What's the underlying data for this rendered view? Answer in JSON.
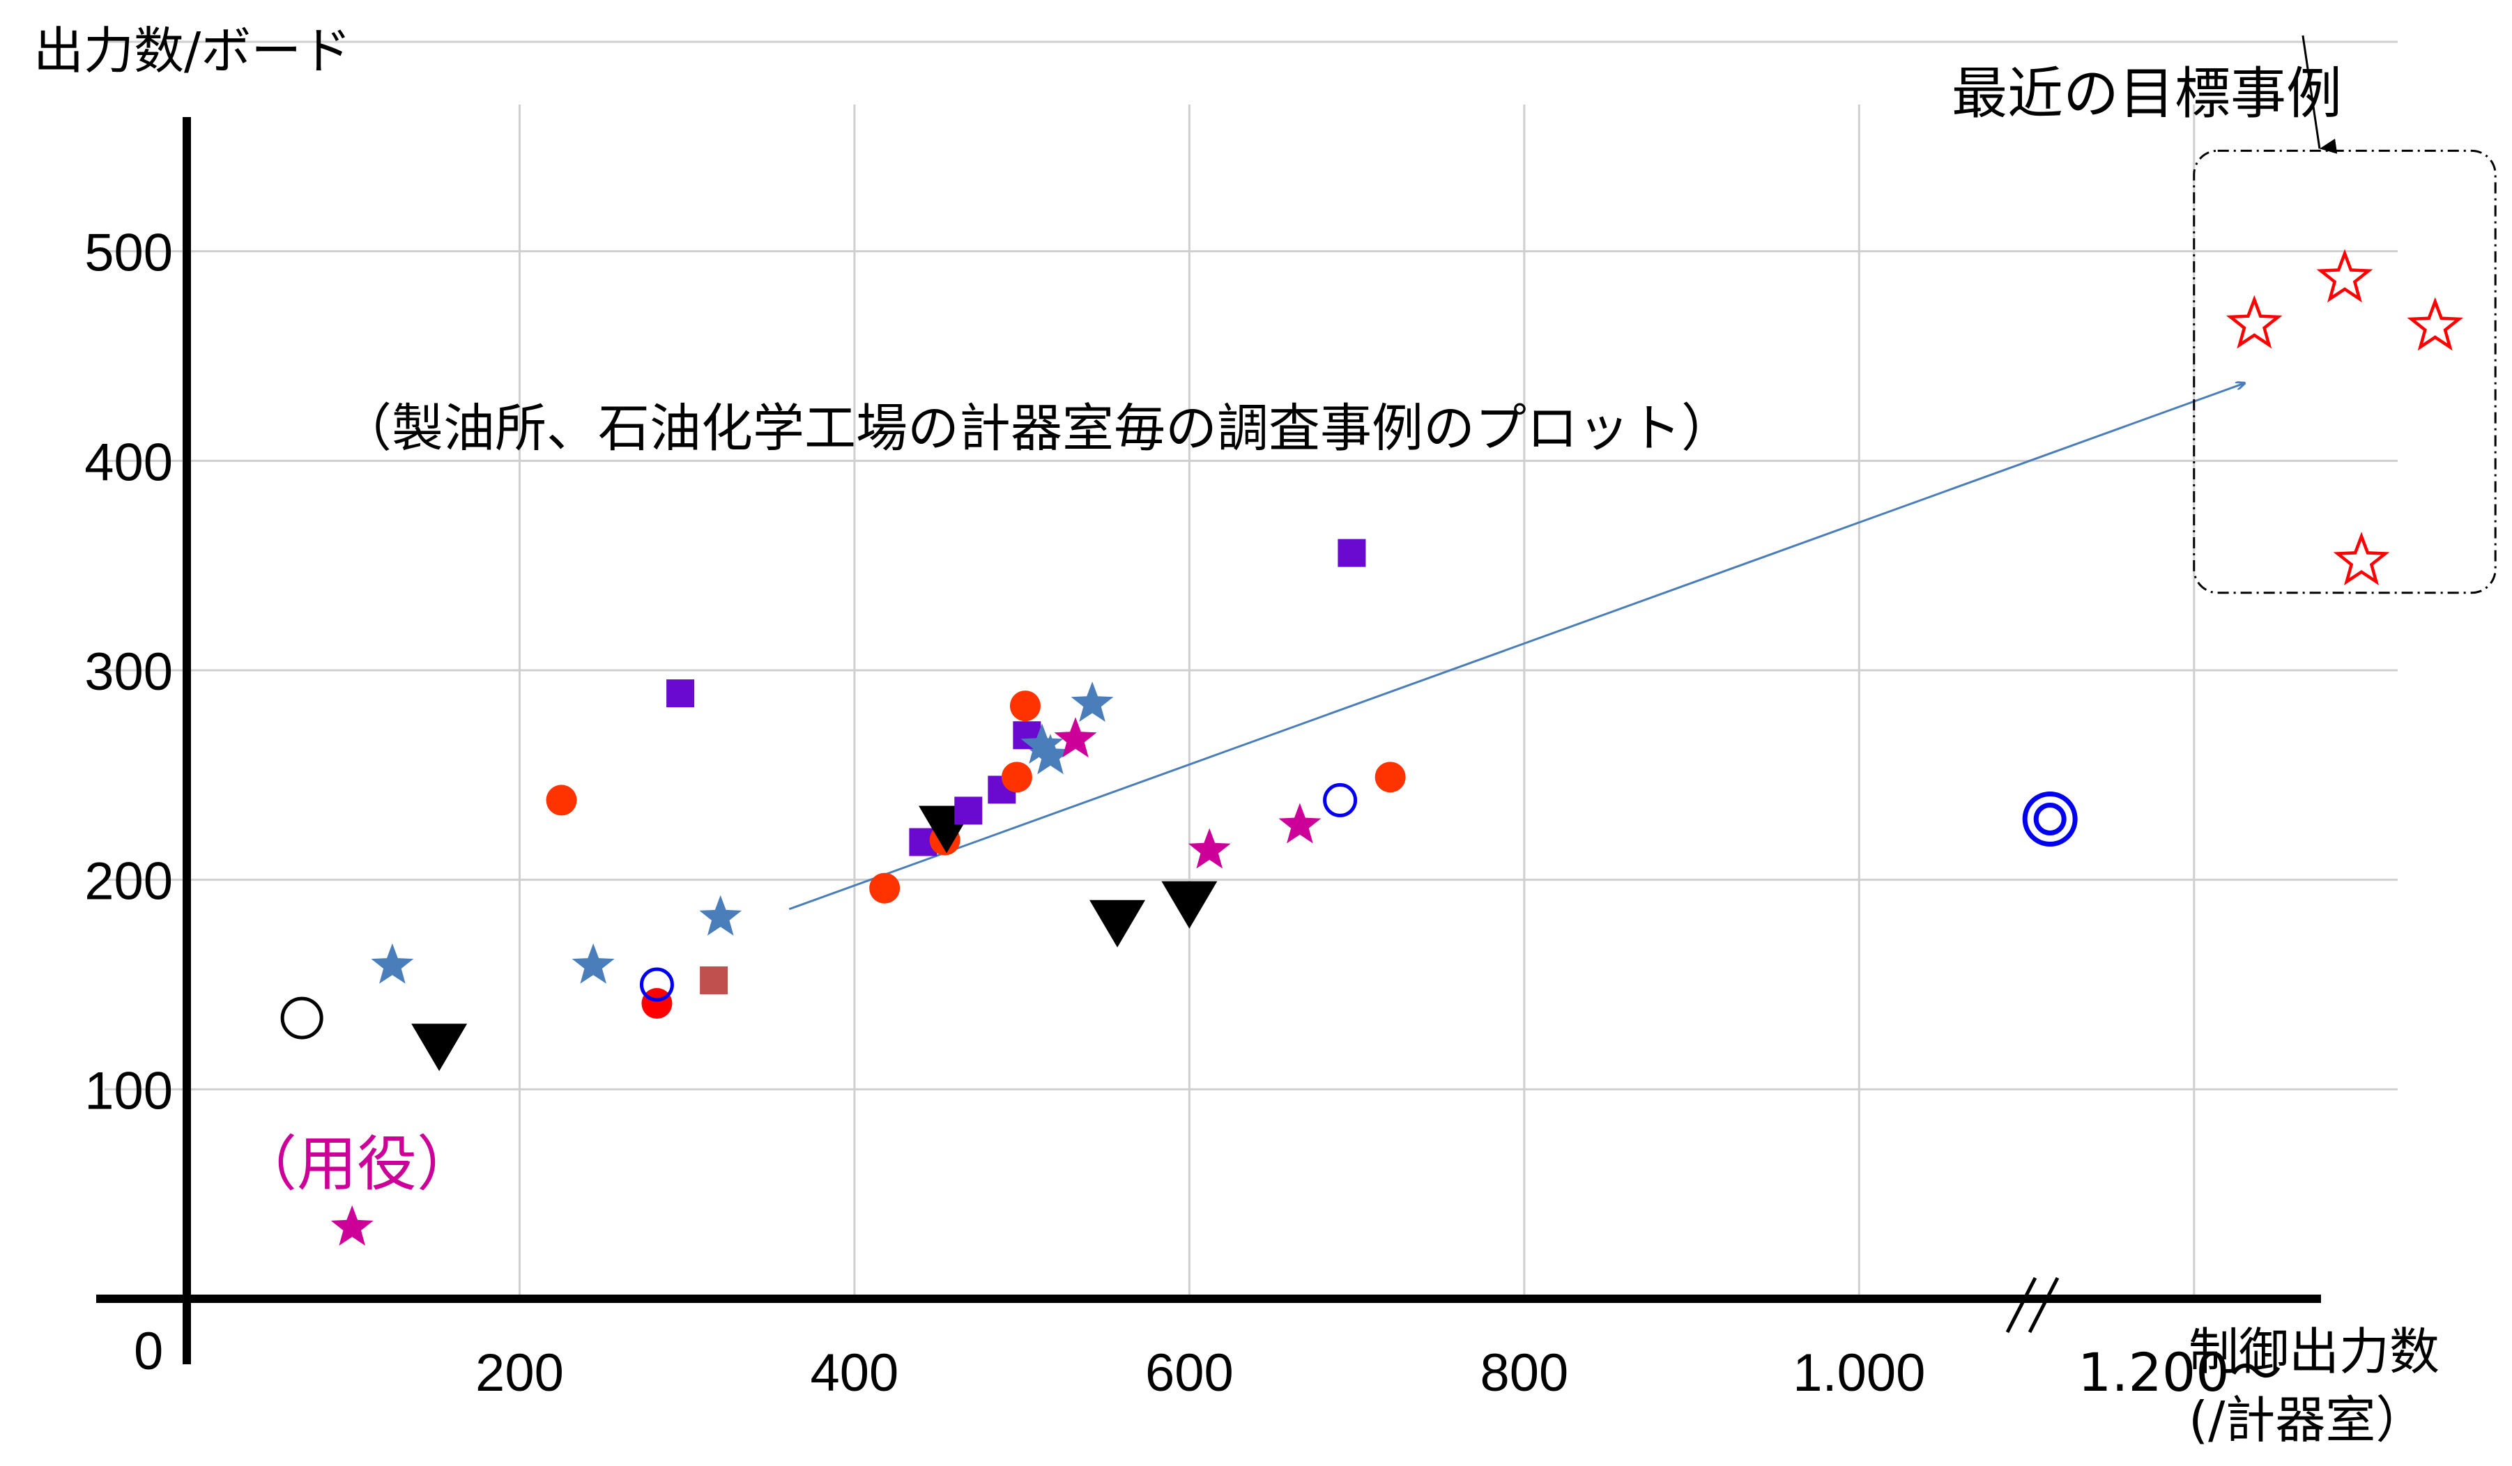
{
  "chart_data": {
    "type": "scatter",
    "title": "",
    "ylabel": "出力数/ボード",
    "xlabel": "制御出力数",
    "xlabel_sub": "(/計器室）",
    "xlim": [
      0,
      1300
    ],
    "ylim": [
      0,
      600
    ],
    "x_ticks": [
      {
        "value": 200,
        "label": "200"
      },
      {
        "value": 400,
        "label": "400"
      },
      {
        "value": 600,
        "label": "600"
      },
      {
        "value": 800,
        "label": "800"
      },
      {
        "value": 1000,
        "label": "1.000"
      },
      {
        "value": 1200,
        "label": "1.200～"
      }
    ],
    "y_ticks": [
      {
        "value": 100,
        "label": "100"
      },
      {
        "value": 200,
        "label": "200"
      },
      {
        "value": 300,
        "label": "300"
      },
      {
        "value": 400,
        "label": "400"
      },
      {
        "value": 500,
        "label": "500"
      }
    ],
    "origin_label": "0",
    "x_axis_break": true,
    "grid": true,
    "annotations": {
      "subtitle": "（製油所、石油化学工場の計器室毎の調査事例のプロット）",
      "utility_label": "（用役）",
      "target_label": "最近の目標事例"
    },
    "trend_arrow": {
      "from": [
        361,
        186
      ],
      "to": [
        1230,
        437
      ]
    },
    "target_box": {
      "x": [
        1200,
        1380
      ],
      "y": [
        337,
        548
      ]
    },
    "label_pointer": {
      "from": [
        1265,
        603
      ],
      "to": [
        1275,
        549
      ]
    },
    "colors": {
      "steel_blue": "#4a7ebb",
      "purple": "#6a0ad0",
      "red_orange": "#ff3300",
      "magenta": "#cc0099",
      "red": "#ff0000",
      "blue": "#0000ee",
      "brown": "#c0504d",
      "black": "#000000",
      "trend": "#4a7ebb"
    },
    "points": [
      {
        "shape": "circle_open",
        "color": "#000000",
        "x": 70,
        "y": 134
      },
      {
        "shape": "star",
        "color": "#4a7ebb",
        "x": 124,
        "y": 159
      },
      {
        "shape": "triangle_down",
        "color": "#000000",
        "x": 152,
        "y": 120
      },
      {
        "shape": "star",
        "color": "#cc0099",
        "x": 100,
        "y": 34
      },
      {
        "shape": "circle",
        "color": "#ff3300",
        "x": 225,
        "y": 238
      },
      {
        "shape": "star",
        "color": "#4a7ebb",
        "x": 244,
        "y": 159
      },
      {
        "shape": "circle",
        "color": "#ff0000",
        "x": 282,
        "y": 141
      },
      {
        "shape": "circle_open",
        "color": "#0000ee",
        "x": 282,
        "y": 150
      },
      {
        "shape": "square",
        "color": "#6a0ad0",
        "x": 296,
        "y": 289
      },
      {
        "shape": "square",
        "color": "#c0504d",
        "x": 316,
        "y": 152
      },
      {
        "shape": "star",
        "color": "#4a7ebb",
        "x": 320,
        "y": 182
      },
      {
        "shape": "circle",
        "color": "#ff3300",
        "x": 418,
        "y": 196
      },
      {
        "shape": "square",
        "color": "#6a0ad0",
        "x": 441,
        "y": 218
      },
      {
        "shape": "circle",
        "color": "#ff3300",
        "x": 454,
        "y": 219
      },
      {
        "shape": "triangle_down",
        "color": "#000000",
        "x": 455,
        "y": 224
      },
      {
        "shape": "square",
        "color": "#6a0ad0",
        "x": 468,
        "y": 233
      },
      {
        "shape": "square",
        "color": "#6a0ad0",
        "x": 488,
        "y": 243
      },
      {
        "shape": "circle",
        "color": "#ff3300",
        "x": 497,
        "y": 249
      },
      {
        "shape": "circle",
        "color": "#ff3300",
        "x": 502,
        "y": 283
      },
      {
        "shape": "square",
        "color": "#6a0ad0",
        "x": 503,
        "y": 269
      },
      {
        "shape": "star",
        "color": "#4a7ebb",
        "x": 512,
        "y": 264
      },
      {
        "shape": "star",
        "color": "#4a7ebb",
        "x": 517,
        "y": 259
      },
      {
        "shape": "star",
        "color": "#cc0099",
        "x": 532,
        "y": 267
      },
      {
        "shape": "star",
        "color": "#4a7ebb",
        "x": 542,
        "y": 284
      },
      {
        "shape": "triangle_down",
        "color": "#000000",
        "x": 557,
        "y": 179
      },
      {
        "shape": "triangle_down",
        "color": "#000000",
        "x": 600,
        "y": 188
      },
      {
        "shape": "star",
        "color": "#cc0099",
        "x": 612,
        "y": 214
      },
      {
        "shape": "star",
        "color": "#cc0099",
        "x": 666,
        "y": 226
      },
      {
        "shape": "circle_open",
        "color": "#0000ee",
        "x": 690,
        "y": 238
      },
      {
        "shape": "square",
        "color": "#6a0ad0",
        "x": 697,
        "y": 356
      },
      {
        "shape": "circle",
        "color": "#ff3300",
        "x": 720,
        "y": 249
      },
      {
        "shape": "double_circle",
        "color": "#0000ee",
        "x": 1114,
        "y": 229
      },
      {
        "shape": "star_open",
        "color": "#ff0000",
        "x": 1236,
        "y": 465
      },
      {
        "shape": "star_open",
        "color": "#ff0000",
        "x": 1290,
        "y": 487
      },
      {
        "shape": "star_open",
        "color": "#ff0000",
        "x": 1344,
        "y": 464
      },
      {
        "shape": "star_open",
        "color": "#ff0000",
        "x": 1300,
        "y": 352
      }
    ]
  }
}
